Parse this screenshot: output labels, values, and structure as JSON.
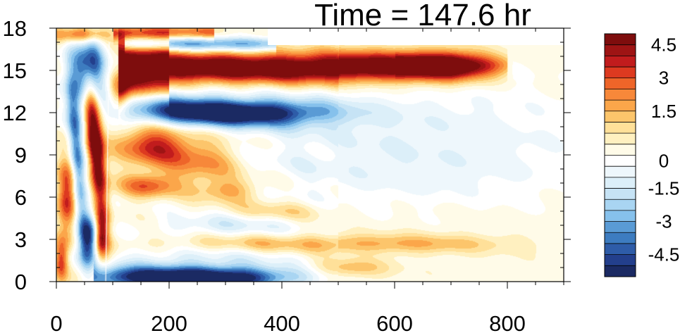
{
  "chart_data": {
    "type": "heatmap",
    "title": "Time = 147.6 hr",
    "xlabel": "",
    "ylabel": "",
    "xlim": [
      0,
      900
    ],
    "ylim": [
      0,
      18
    ],
    "x_ticks": [
      0,
      200,
      400,
      600,
      800
    ],
    "x_tick_labels": [
      "0",
      "200",
      "400",
      "600",
      "800"
    ],
    "y_ticks": [
      0,
      3,
      6,
      9,
      12,
      15,
      18
    ],
    "y_tick_labels": [
      "0",
      "3",
      "6",
      "9",
      "12",
      "15",
      "18"
    ],
    "colorbar": {
      "levels": [
        -5.25,
        -4.75,
        -4.25,
        -3.75,
        -3.25,
        -2.75,
        -2.25,
        -1.75,
        -1.25,
        -0.75,
        -0.25,
        0.25,
        0.75,
        1.25,
        1.75,
        2.25,
        2.75,
        3.25,
        3.75,
        4.25,
        4.75
      ],
      "labels": [
        {
          "value": 4.5,
          "text": "4.5"
        },
        {
          "value": 3,
          "text": "3"
        },
        {
          "value": 1.5,
          "text": "1.5"
        },
        {
          "value": 0,
          "text": "0"
        },
        {
          "value": -1.5,
          "text": "-1.5"
        },
        {
          "value": -3,
          "text": "-3"
        },
        {
          "value": -4.5,
          "text": "-4.5"
        }
      ],
      "colors": [
        "#1b2a63",
        "#233f8c",
        "#2e5ca8",
        "#3d7cc0",
        "#5a9bd5",
        "#86c1ec",
        "#a9d5f2",
        "#c6e3f5",
        "#dceff9",
        "#eef7fc",
        "#ffffff",
        "#fffbe8",
        "#fff0c0",
        "#ffe099",
        "#fcc56b",
        "#fba64a",
        "#f7883a",
        "#ee6529",
        "#dd3a20",
        "#c11c1d",
        "#9e1414",
        "#7e0d0d"
      ]
    },
    "features": [
      {
        "desc": "positive band",
        "x": [
          110,
          790
        ],
        "y": 15.2,
        "peak": 6
      },
      {
        "desc": "negative core",
        "x": [
          160,
          480
        ],
        "y": 12.1,
        "peak": -6
      },
      {
        "desc": "near-surface negative",
        "x": [
          70,
          400
        ],
        "y": 0.5,
        "peak": -6
      },
      {
        "desc": "positive blob",
        "x": [
          120,
          300
        ],
        "y": 9.5,
        "peak": 3
      },
      {
        "desc": "weak positive band",
        "x": [
          250,
          700
        ],
        "y": 2.6,
        "peak": 1.5
      }
    ]
  }
}
